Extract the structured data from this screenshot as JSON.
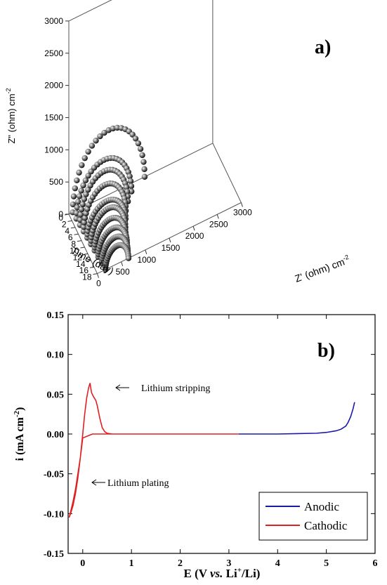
{
  "chart_data": [
    {
      "type": "scatter",
      "panel_label": "a)",
      "zlabel": "Z\" (ohm) cm",
      "zlabel_exp": "-2",
      "xlabel": "Z' (ohm) cm",
      "xlabel_exp": "-2",
      "ylabel": "Time (day)",
      "z_ticks": [
        "0",
        "500",
        "1000",
        "1500",
        "2000",
        "2500",
        "3000"
      ],
      "x_ticks": [
        "0",
        "500",
        "1000",
        "1500",
        "2000",
        "2500",
        "3000"
      ],
      "time_ticks": [
        "0",
        "2",
        "4",
        "6",
        "8",
        "10",
        "12",
        "14",
        "16",
        "18"
      ],
      "zlim": [
        0,
        3000
      ],
      "xlim": [
        0,
        3000
      ],
      "time_lim": [
        0,
        18
      ],
      "grid": false,
      "series": [
        {
          "time": 0,
          "diameter": 1500,
          "peak": 1000
        },
        {
          "time": 2,
          "diameter": 1150,
          "peak": 700
        },
        {
          "time": 4,
          "diameter": 1000,
          "peak": 650
        },
        {
          "time": 6,
          "diameter": 880,
          "peak": 560
        },
        {
          "time": 8,
          "diameter": 800,
          "peak": 420
        },
        {
          "time": 10,
          "diameter": 720,
          "peak": 420
        },
        {
          "time": 12,
          "diameter": 650,
          "peak": 370
        },
        {
          "time": 14,
          "diameter": 600,
          "peak": 330
        },
        {
          "time": 16,
          "diameter": 540,
          "peak": 300
        },
        {
          "time": 18,
          "diameter": 480,
          "peak": 280
        }
      ]
    },
    {
      "type": "line",
      "panel_label": "b)",
      "xlabel_parts": [
        "E (V ",
        "vs.",
        " Li",
        "+",
        "/Li)"
      ],
      "ylabel": "i (mA cm",
      "ylabel_exp": "-2",
      "ylabel_close": ")",
      "xlim": [
        -0.3,
        6
      ],
      "ylim": [
        -0.15,
        0.15
      ],
      "x_ticks": [
        "0",
        "1",
        "2",
        "3",
        "4",
        "5",
        "6"
      ],
      "y_ticks": [
        "-0.15",
        "-0.10",
        "-0.05",
        "0.00",
        "0.05",
        "0.10",
        "0.15"
      ],
      "legend_position": "bottom-right",
      "annotations": [
        "Lithium stripping",
        "Lithium plating"
      ],
      "series": [
        {
          "name": "Anodic",
          "color": "#1a1aa6",
          "x": [
            3.2,
            3.6,
            4.0,
            4.4,
            4.8,
            5.0,
            5.2,
            5.3,
            5.4,
            5.45,
            5.5,
            5.55,
            5.58
          ],
          "y": [
            0.0,
            0.0,
            0.0,
            0.0005,
            0.001,
            0.002,
            0.004,
            0.006,
            0.01,
            0.015,
            0.022,
            0.032,
            0.04
          ]
        },
        {
          "name": "Cathodic",
          "color": "#e02020",
          "x": [
            3.2,
            2.0,
            1.0,
            0.6,
            0.5,
            0.45,
            0.4,
            0.35,
            0.3,
            0.27,
            0.22,
            0.18,
            0.15,
            0.12,
            0.08,
            0.04,
            0.0,
            -0.05,
            -0.1,
            -0.15,
            -0.2,
            -0.25,
            -0.28,
            -0.25,
            -0.2,
            -0.15,
            -0.1,
            -0.05,
            0.0,
            0.2,
            0.5,
            1.0,
            2.0,
            3.2
          ],
          "y": [
            0.0,
            0.0,
            0.0,
            0.0,
            0.001,
            0.003,
            0.008,
            0.02,
            0.035,
            0.042,
            0.047,
            0.052,
            0.064,
            0.058,
            0.045,
            0.025,
            0.0,
            -0.03,
            -0.055,
            -0.075,
            -0.09,
            -0.1,
            -0.105,
            -0.098,
            -0.085,
            -0.07,
            -0.05,
            -0.03,
            -0.005,
            0.0,
            0.0,
            0.0,
            0.0,
            0.0
          ]
        }
      ]
    }
  ]
}
